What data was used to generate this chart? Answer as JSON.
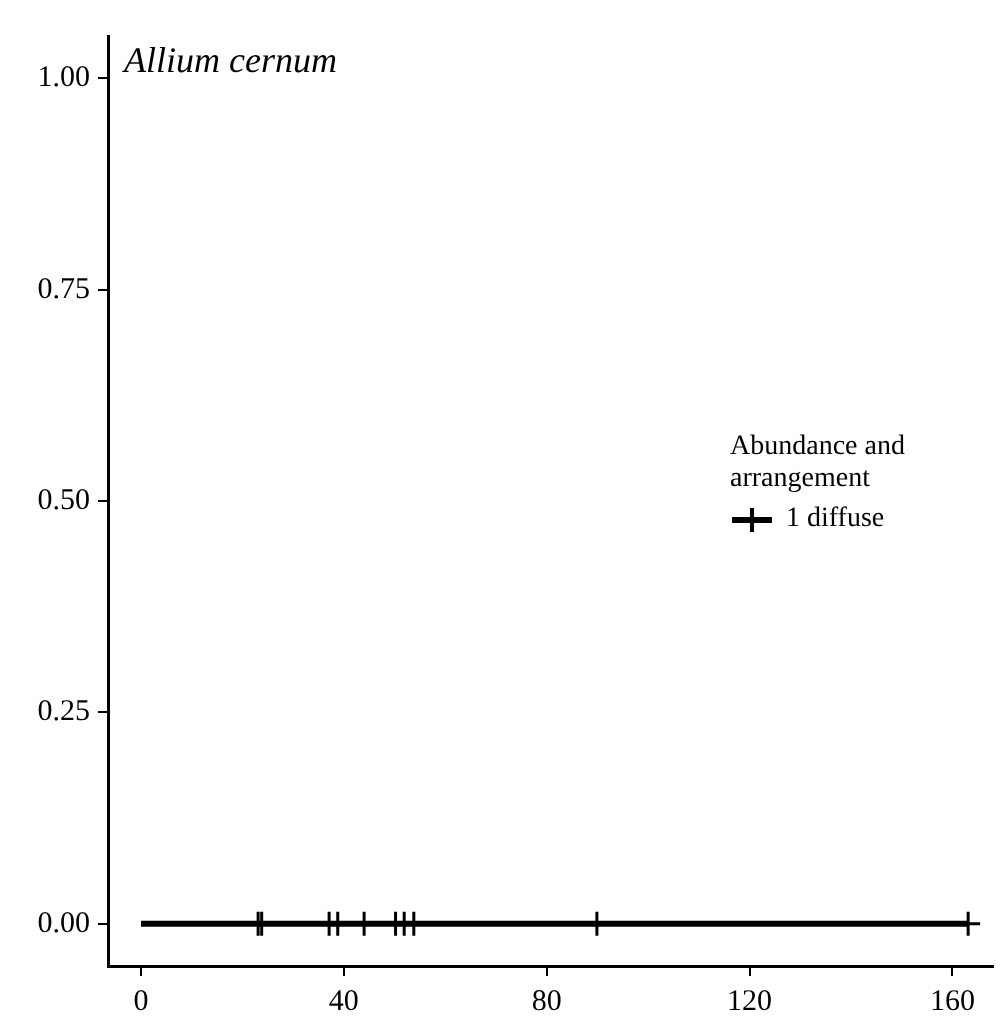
{
  "chart_data": {
    "type": "scatter",
    "title": "Allium cernum",
    "legend_title": "Abundance and arrangement",
    "legend": "right",
    "grid": false,
    "xlim": [
      -6.5,
      168
    ],
    "xticks": [
      0,
      40,
      80,
      120,
      160
    ],
    "ylim": [
      -0.05,
      1.05
    ],
    "yticks": [
      {
        "value": 0,
        "label": "0.00"
      },
      {
        "value": 0.25,
        "label": "0.25"
      },
      {
        "value": 0.5,
        "label": "0.50"
      },
      {
        "value": 0.75,
        "label": "0.75"
      },
      {
        "value": 1,
        "label": "1.00"
      }
    ],
    "series": [
      {
        "name": "1 diffuse",
        "type": "line",
        "color": "#000000",
        "marker": "none",
        "x": [
          0,
          163.1
        ],
        "values": [
          0,
          0
        ]
      },
      {
        "type": "scatter",
        "color": "#000000",
        "marker": "cross",
        "x": [
          23.1,
          23.8,
          37.1,
          38.8,
          44.0,
          50.2,
          51.9,
          53.8,
          89.9,
          163.1
        ],
        "values": [
          0,
          0,
          0,
          0,
          0,
          0,
          0,
          0,
          0,
          0
        ]
      }
    ]
  }
}
